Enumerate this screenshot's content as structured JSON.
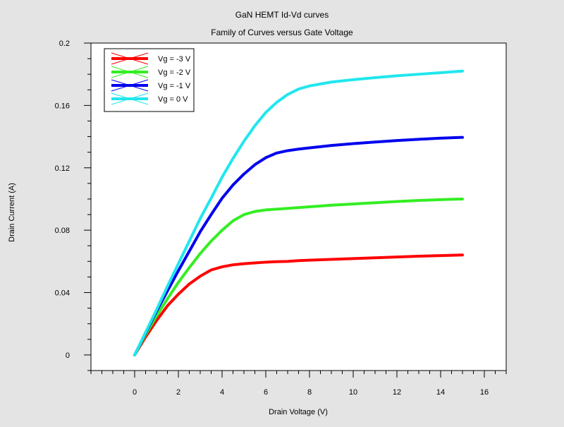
{
  "chart_data": {
    "type": "line",
    "title": "GaN HEMT Id-Vd curves",
    "subtitle": "Family of Curves versus Gate Voltage",
    "xlabel": "Drain Voltage (V)",
    "ylabel": "Drain Current (A)",
    "xlim": [
      -2,
      17
    ],
    "ylim": [
      -0.01,
      0.2
    ],
    "xticks": [
      0,
      2,
      4,
      6,
      8,
      10,
      12,
      14,
      16
    ],
    "xtick_labels": [
      "0",
      "2",
      "4",
      "6",
      "8",
      "10",
      "12",
      "14",
      "16"
    ],
    "yticks": [
      0,
      0.04,
      0.08,
      0.12,
      0.16,
      0.2
    ],
    "ytick_labels": [
      "0",
      "0.04",
      "0.08",
      "0.12",
      "0.16",
      "0.2"
    ],
    "grid": false,
    "legend_position": "top-left",
    "x": [
      0,
      0.5,
      1,
      1.5,
      2,
      2.5,
      3,
      3.5,
      4,
      4.5,
      5,
      5.5,
      6,
      6.5,
      7,
      7.5,
      8,
      9,
      10,
      11,
      12,
      13,
      14,
      15
    ],
    "series": [
      {
        "name": "Vg = -3 V",
        "color": "#ff0000",
        "values": [
          0,
          0.0115,
          0.022,
          0.0315,
          0.039,
          0.0455,
          0.0505,
          0.0545,
          0.0565,
          0.0578,
          0.0585,
          0.059,
          0.0595,
          0.0598,
          0.06,
          0.0605,
          0.0608,
          0.0613,
          0.0618,
          0.0623,
          0.0628,
          0.0633,
          0.0637,
          0.0641
        ]
      },
      {
        "name": "Vg = -2 V",
        "color": "#33ee22",
        "values": [
          0,
          0.013,
          0.025,
          0.036,
          0.0465,
          0.056,
          0.065,
          0.073,
          0.08,
          0.086,
          0.09,
          0.092,
          0.093,
          0.0935,
          0.094,
          0.0945,
          0.095,
          0.096,
          0.0968,
          0.0976,
          0.0984,
          0.0991,
          0.0996,
          0.1
        ]
      },
      {
        "name": "Vg = -1 V",
        "color": "#0000ee",
        "values": [
          0,
          0.014,
          0.028,
          0.041,
          0.054,
          0.0665,
          0.079,
          0.09,
          0.1005,
          0.109,
          0.116,
          0.122,
          0.1265,
          0.1295,
          0.131,
          0.132,
          0.1328,
          0.1343,
          0.1355,
          0.1365,
          0.1375,
          0.1383,
          0.139,
          0.1395
        ]
      },
      {
        "name": "Vg = 0 V",
        "color": "#22e6ee",
        "values": [
          0,
          0.0145,
          0.029,
          0.044,
          0.0585,
          0.073,
          0.0875,
          0.1005,
          0.114,
          0.126,
          0.137,
          0.147,
          0.1555,
          0.162,
          0.167,
          0.1705,
          0.1725,
          0.175,
          0.1765,
          0.1778,
          0.179,
          0.18,
          0.181,
          0.182
        ]
      }
    ]
  }
}
